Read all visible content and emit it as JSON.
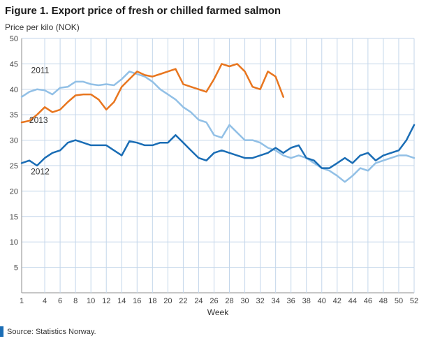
{
  "header": {
    "title": "Figure 1. Export price of fresh or chilled farmed salmon",
    "y_axis_title": "Price per kilo (NOK)"
  },
  "footer": {
    "source": "Source: Statistics Norway."
  },
  "colors": {
    "series_2011": "#92c0e6",
    "series_2012": "#1a6db5",
    "series_2013": "#e8761f",
    "grid": "#c3d6ea",
    "axis": "#8c8c8c",
    "source_mark": "#1a6db5"
  },
  "chart_data": {
    "type": "line",
    "title": "Figure 1. Export price of fresh or chilled farmed salmon",
    "xlabel": "Week",
    "ylabel": "Price per kilo (NOK)",
    "xlim": [
      1,
      52
    ],
    "ylim": [
      0,
      50
    ],
    "y_ticks": [
      5,
      10,
      15,
      20,
      25,
      30,
      35,
      40,
      45,
      50
    ],
    "x_ticks": [
      1,
      4,
      6,
      8,
      10,
      12,
      14,
      16,
      18,
      20,
      22,
      24,
      26,
      28,
      30,
      32,
      34,
      36,
      38,
      40,
      42,
      44,
      46,
      48,
      50,
      52
    ],
    "grid": true,
    "x": [
      1,
      2,
      3,
      4,
      5,
      6,
      7,
      8,
      9,
      10,
      11,
      12,
      13,
      14,
      15,
      16,
      17,
      18,
      19,
      20,
      21,
      22,
      23,
      24,
      25,
      26,
      27,
      28,
      29,
      30,
      31,
      32,
      33,
      34,
      35,
      36,
      37,
      38,
      39,
      40,
      41,
      42,
      43,
      44,
      45,
      46,
      47,
      48,
      49,
      50,
      51,
      52
    ],
    "series": [
      {
        "name": "2011",
        "color_key": "series_2011",
        "values": [
          38.5,
          39.5,
          40,
          39.8,
          39,
          40.3,
          40.5,
          41.5,
          41.5,
          41,
          40.8,
          41,
          40.8,
          42,
          43.5,
          43,
          42.5,
          41.5,
          40,
          39,
          38,
          36.5,
          35.5,
          34,
          33.5,
          31,
          30.5,
          33,
          31.5,
          30,
          30,
          29.5,
          28.5,
          28,
          27,
          26.5,
          27,
          26.5,
          25.5,
          24.5,
          24,
          23,
          21.8,
          23,
          24.5,
          24,
          25.5,
          26,
          26.5,
          27,
          27,
          26.5
        ]
      },
      {
        "name": "2013",
        "color_key": "series_2013",
        "values": [
          33.5,
          33.8,
          35,
          36.5,
          35.5,
          36,
          37.5,
          38.8,
          39,
          39,
          38,
          36,
          37.5,
          40.5,
          42,
          43.5,
          42.8,
          42.5,
          43,
          43.5,
          44,
          41,
          40.5,
          40,
          39.5,
          42,
          45,
          44.5,
          45,
          43.5,
          40.5,
          40,
          43.5,
          42.5,
          38.5,
          null,
          null,
          null,
          null,
          null,
          null,
          null,
          null,
          null,
          null,
          null,
          null,
          null,
          null,
          null,
          null,
          null
        ]
      },
      {
        "name": "2012",
        "color_key": "series_2012",
        "values": [
          25.5,
          26,
          25,
          26.5,
          27.5,
          28,
          29.5,
          30,
          29.5,
          29,
          29,
          29,
          28,
          27,
          29.8,
          29.5,
          29,
          29,
          29.5,
          29.5,
          31,
          29.5,
          28,
          26.5,
          26,
          27.5,
          28,
          27.5,
          27,
          26.5,
          26.5,
          27,
          27.5,
          28.5,
          27.5,
          28.5,
          29,
          26.5,
          26,
          24.5,
          24.5,
          25.5,
          26.5,
          25.5,
          27,
          27.5,
          26,
          27,
          27.5,
          28,
          30,
          33
        ]
      }
    ],
    "annotations": [
      {
        "label": "2011",
        "week": 3.4,
        "value": 43.2
      },
      {
        "label": "2013",
        "week": 3.2,
        "value": 33.4
      },
      {
        "label": "2012",
        "week": 3.4,
        "value": 23.3
      }
    ]
  }
}
